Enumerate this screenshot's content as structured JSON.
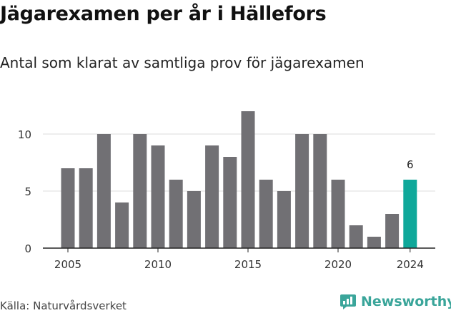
{
  "title": "Jägarexamen per år i Hällefors",
  "subtitle": "Antal som klarat av samtliga prov för jägarexamen",
  "source": "Källa: Naturvårdsverket",
  "brand": {
    "name": "Newsworthy",
    "icon": "newsworthy-logo-icon",
    "color": "#3aa59a"
  },
  "colors": {
    "bar": "#717074",
    "highlight": "#0fa89a",
    "grid": "#dddddd"
  },
  "chart_data": {
    "type": "bar",
    "title": "Jägarexamen per år i Hällefors",
    "subtitle": "Antal som klarat av samtliga prov för jägarexamen",
    "xlabel": "",
    "ylabel": "",
    "categories": [
      "2005",
      "2006",
      "2007",
      "2008",
      "2009",
      "2010",
      "2011",
      "2012",
      "2013",
      "2014",
      "2015",
      "2016",
      "2017",
      "2018",
      "2019",
      "2020",
      "2021",
      "2022",
      "2023",
      "2024"
    ],
    "values": [
      7,
      7,
      10,
      4,
      10,
      9,
      6,
      5,
      9,
      8,
      12,
      6,
      5,
      10,
      10,
      6,
      2,
      1,
      3,
      6
    ],
    "ylim": [
      0,
      12
    ],
    "yticks": [
      0,
      5,
      10
    ],
    "xticks": [
      "2005",
      "2010",
      "2015",
      "2020",
      "2024"
    ],
    "highlight": {
      "category": "2024",
      "label": "6"
    },
    "grid": true,
    "legend": "none"
  }
}
